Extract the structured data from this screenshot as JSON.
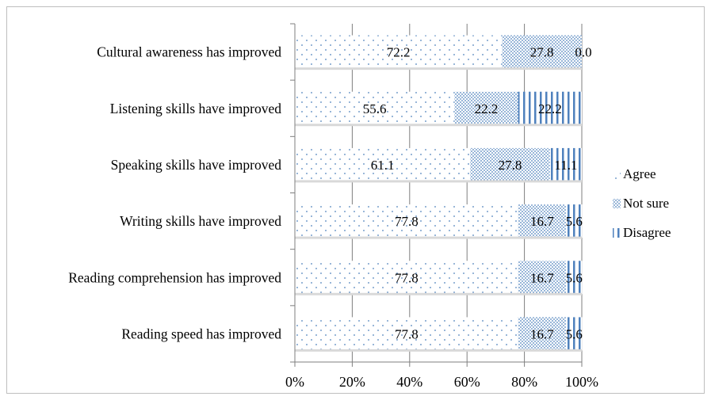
{
  "chart_data": {
    "type": "bar",
    "orientation": "horizontal",
    "stacked": "percent",
    "categories": [
      "Cultural awareness has improved",
      "Listening skills have improved",
      "Speaking skills have improved",
      "Writing skills have improved",
      "Reading comprehension has improved",
      "Reading speed has improved"
    ],
    "series": [
      {
        "name": "Agree",
        "values": [
          72.2,
          55.6,
          61.1,
          77.8,
          77.8,
          77.8
        ],
        "labels": [
          "72.2",
          "55.6",
          "61.1",
          "77.8",
          "77.8",
          "77.8"
        ],
        "pattern": "dots"
      },
      {
        "name": "Not sure",
        "values": [
          27.8,
          22.2,
          27.8,
          16.7,
          16.7,
          16.7
        ],
        "labels": [
          "27.8",
          "22.2",
          "27.8",
          "16.7",
          "16.7",
          "16.7"
        ],
        "pattern": "dense-dots"
      },
      {
        "name": "Disagree",
        "values": [
          0.0,
          22.2,
          11.1,
          5.6,
          5.6,
          5.6
        ],
        "labels": [
          "0.0",
          "22.2",
          "11.1",
          "5.6",
          "5.6",
          "5.6"
        ],
        "pattern": "vertical-lines"
      }
    ],
    "x_ticks": [
      "0%",
      "20%",
      "40%",
      "60%",
      "80%",
      "100%"
    ],
    "xlim": [
      0,
      100
    ],
    "grid": "vertical",
    "legend_position": "right",
    "colors": {
      "pattern": "#4f81bd",
      "gridline": "#7f7f7f",
      "frame": "#bfbfbf"
    }
  }
}
